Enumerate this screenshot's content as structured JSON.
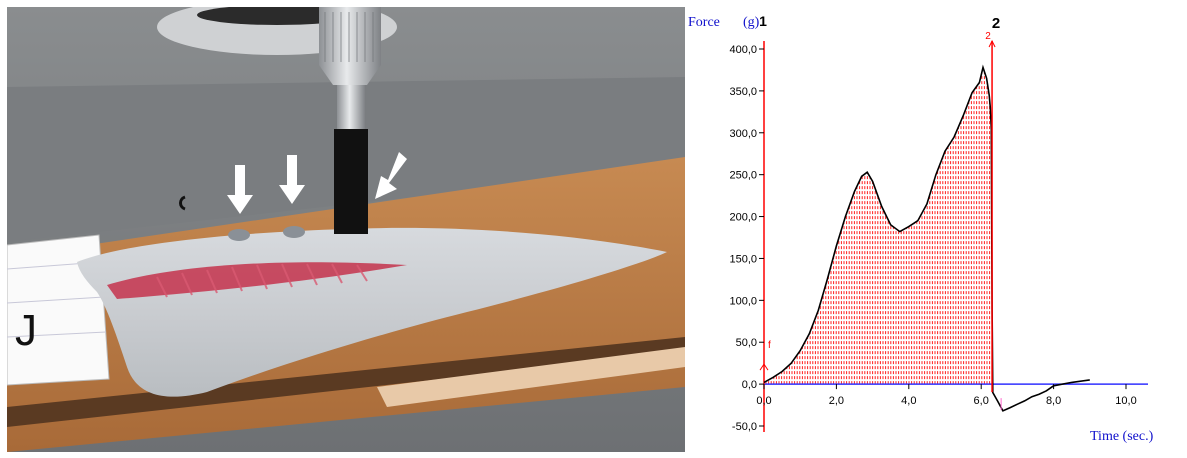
{
  "photo": {
    "label_letter": "J",
    "arrow_count": 3
  },
  "chart_data": {
    "type": "area",
    "ylabel": "Force",
    "yunit": "(g)",
    "xlabel": "Time (sec.)",
    "marker_top_label": "1",
    "marker_label": "2",
    "marker_small_label": "2",
    "start_marker_label": "f",
    "ylim": [
      -50,
      400
    ],
    "xlim": [
      0,
      10
    ],
    "yticks": [
      "400,0",
      "350,0",
      "300,0",
      "250,0",
      "200,0",
      "150,0",
      "100,0",
      "50,0",
      "0,0",
      "-50,0"
    ],
    "ytick_values": [
      400,
      350,
      300,
      250,
      200,
      150,
      100,
      50,
      0,
      -50
    ],
    "xticks": [
      "0,0",
      "2,0",
      "4,0",
      "6,0",
      "8,0",
      "10,0"
    ],
    "xtick_values": [
      0,
      2,
      4,
      6,
      8,
      10
    ],
    "area_range": [
      0,
      6.3
    ],
    "colors": {
      "curve": "#000000",
      "fill": "#ff2020",
      "axis_x": "#3030ff",
      "axis_y": "#ff0000",
      "marker": "#ff0000",
      "label_blue": "#1010cc"
    },
    "x": [
      0,
      0.25,
      0.5,
      0.75,
      1.0,
      1.25,
      1.5,
      1.75,
      2.0,
      2.25,
      2.5,
      2.7,
      2.85,
      3.0,
      3.25,
      3.5,
      3.75,
      4.0,
      4.25,
      4.5,
      4.75,
      5.0,
      5.25,
      5.5,
      5.75,
      5.95,
      6.05,
      6.15,
      6.22,
      6.25,
      6.28,
      6.3,
      6.32,
      6.45,
      6.6,
      6.8,
      7.0,
      7.2,
      7.4,
      7.6,
      7.8,
      8.0,
      8.5,
      9.0
    ],
    "y": [
      2,
      8,
      15,
      25,
      40,
      60,
      88,
      125,
      165,
      200,
      230,
      248,
      253,
      242,
      212,
      190,
      182,
      188,
      195,
      215,
      250,
      278,
      295,
      320,
      348,
      360,
      378,
      365,
      345,
      330,
      305,
      90,
      -10,
      -20,
      -32,
      -28,
      -24,
      -20,
      -15,
      -12,
      -8,
      -2,
      2,
      5
    ]
  }
}
